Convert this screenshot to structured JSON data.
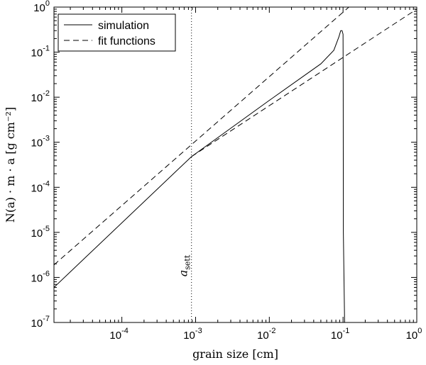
{
  "chart_data": {
    "type": "line",
    "xscale": "log",
    "yscale": "log",
    "xlim": [
      1.2e-05,
      1
    ],
    "ylim": [
      1e-07,
      1
    ],
    "xlabel": "grain size [cm]",
    "ylabel": "N(a) · m · a [g cm⁻²]",
    "xticks": [
      {
        "value": 0.0001,
        "base": "10",
        "exp": "-4"
      },
      {
        "value": 0.001,
        "base": "10",
        "exp": "-3"
      },
      {
        "value": 0.01,
        "base": "10",
        "exp": "-2"
      },
      {
        "value": 0.1,
        "base": "10",
        "exp": "-1"
      },
      {
        "value": 1,
        "base": "10",
        "exp": "0"
      }
    ],
    "yticks": [
      {
        "value": 1e-07,
        "base": "10",
        "exp": "-7"
      },
      {
        "value": 1e-06,
        "base": "10",
        "exp": "-6"
      },
      {
        "value": 1e-05,
        "base": "10",
        "exp": "-5"
      },
      {
        "value": 0.0001,
        "base": "10",
        "exp": "-4"
      },
      {
        "value": 0.001,
        "base": "10",
        "exp": "-3"
      },
      {
        "value": 0.01,
        "base": "10",
        "exp": "-2"
      },
      {
        "value": 0.1,
        "base": "10",
        "exp": "-1"
      },
      {
        "value": 1,
        "base": "10",
        "exp": "0"
      }
    ],
    "series": [
      {
        "name": "simulation",
        "style": "solid",
        "color": "#000000",
        "x": [
          1.2e-05,
          0.00088,
          0.01,
          0.05,
          0.075,
          0.088,
          0.093,
          0.097,
          0.1,
          0.1005,
          0.101,
          0.105
        ],
        "y": [
          6e-07,
          0.00048,
          0.0085,
          0.055,
          0.11,
          0.22,
          0.3,
          0.3,
          0.25,
          0.02,
          1e-05,
          1e-07
        ]
      },
      {
        "name": "fit functions",
        "style": "dashed",
        "color": "#000000",
        "segments": [
          {
            "x": [
              1.2e-05,
              0.12
            ],
            "y": [
              1.9e-06,
              1.0
            ]
          },
          {
            "x": [
              0.00088,
              1.0
            ],
            "y": [
              0.00048,
              0.9
            ]
          }
        ]
      }
    ],
    "annotations": [
      {
        "type": "vline",
        "x": 0.00088,
        "style": "dotted",
        "label": "a",
        "subscript": "sett"
      }
    ],
    "legend": {
      "position": "top-left",
      "entries": [
        "simulation",
        "fit functions"
      ]
    },
    "grid": false
  }
}
